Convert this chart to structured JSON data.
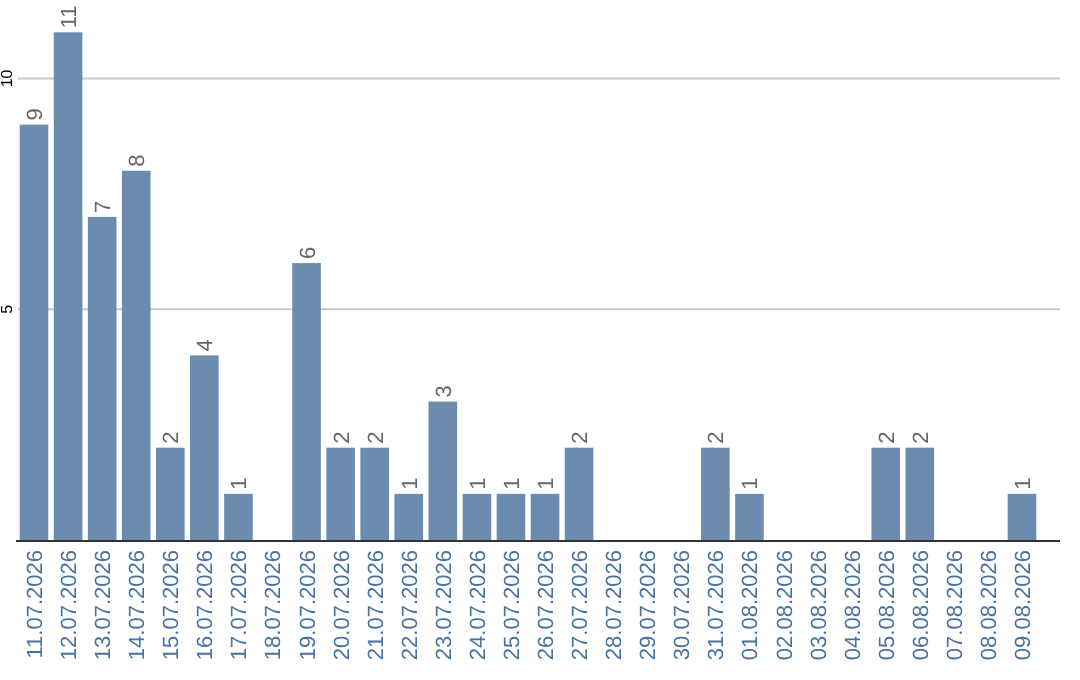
{
  "chart_data": {
    "type": "bar",
    "categories": [
      "11.07.2026",
      "12.07.2026",
      "13.07.2026",
      "14.07.2026",
      "15.07.2026",
      "16.07.2026",
      "17.07.2026",
      "18.07.2026",
      "19.07.2026",
      "20.07.2026",
      "21.07.2026",
      "22.07.2026",
      "23.07.2026",
      "24.07.2026",
      "25.07.2026",
      "26.07.2026",
      "27.07.2026",
      "28.07.2026",
      "29.07.2026",
      "30.07.2026",
      "31.07.2026",
      "01.08.2026",
      "02.08.2026",
      "03.08.2026",
      "04.08.2026",
      "05.08.2026",
      "06.08.2026",
      "07.08.2026",
      "08.08.2026",
      "09.08.2026"
    ],
    "values": [
      9,
      11,
      7,
      8,
      2,
      4,
      1,
      0,
      6,
      2,
      2,
      1,
      3,
      1,
      1,
      1,
      2,
      0,
      0,
      0,
      2,
      1,
      0,
      0,
      0,
      2,
      2,
      0,
      0,
      1
    ],
    "value_labels": [
      "9",
      "11",
      "7",
      "8",
      "2",
      "4",
      "1",
      null,
      "6",
      "2",
      "2",
      "1",
      "3",
      "1",
      "1",
      "1",
      "2",
      null,
      null,
      null,
      "2",
      "1",
      null,
      null,
      null,
      "2",
      "2",
      null,
      null,
      "1"
    ],
    "color": "#6b8cae",
    "ylim": [
      0,
      11.7
    ],
    "yticks": [
      5,
      10
    ],
    "grid": "y"
  }
}
